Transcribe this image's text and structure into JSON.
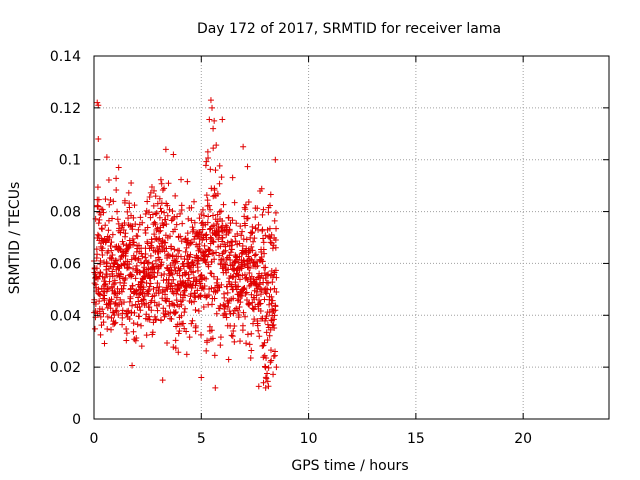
{
  "chart_data": {
    "type": "scatter",
    "title": "Day 172 of 2017, SRMTID for receiver lama",
    "xlabel": "GPS time / hours",
    "ylabel": "SRMTID / TECUs",
    "xlim": [
      0,
      24
    ],
    "ylim": [
      0,
      0.14
    ],
    "x_ticks": [
      0,
      5,
      10,
      15,
      20
    ],
    "x_tick_labels": [
      "0",
      "5",
      "10",
      "15",
      "20"
    ],
    "y_ticks": [
      0,
      0.02,
      0.04,
      0.06,
      0.08,
      0.1,
      0.12,
      0.14
    ],
    "y_tick_labels": [
      "0",
      "0.02",
      "0.04",
      "0.06",
      "0.08",
      "0.1",
      "0.12",
      "0.14"
    ],
    "grid": true,
    "marker": "+",
    "series": [
      {
        "name": "SRMTID",
        "color": "#e00000",
        "point_count_estimate": 1400,
        "x_range": [
          0,
          8.5
        ],
        "y_range": [
          0.012,
          0.123
        ],
        "note": "dense cloud of points; notable highs near x=0.2 (0.122), x=5.5 (0.123); lows near x=8 (0.012)"
      }
    ]
  },
  "colors": {
    "grid": "#a0a0a0",
    "axis": "#000000",
    "points": "#e00000"
  }
}
